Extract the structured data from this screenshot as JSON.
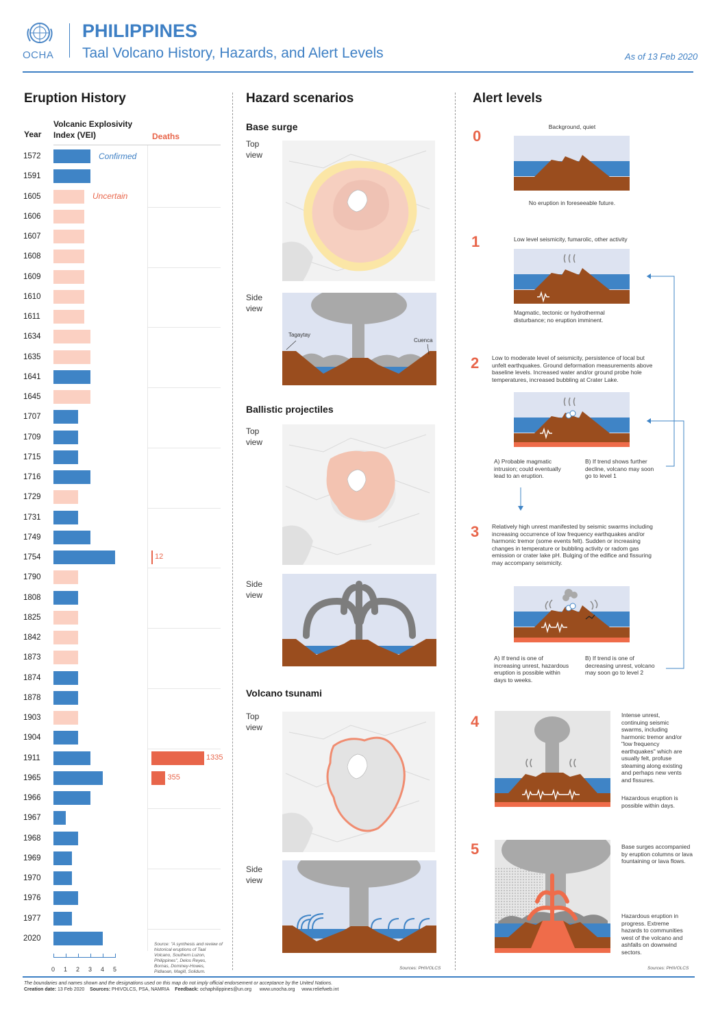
{
  "header": {
    "org": "OCHA",
    "country": "PHILIPPINES",
    "subtitle": "Taal Volcano History, Hazards, and Alert Levels",
    "as_of": "As of 13 Feb 2020"
  },
  "colors": {
    "accent": "#3d7fc4",
    "confirmed": "#3f84c6",
    "uncertain": "#fbd0c2",
    "deaths": "#e8654a",
    "lava": "#ef6c4a",
    "earth": "#9a4d1e",
    "sky": "#dde3f1",
    "water": "#3f84c6",
    "ash": "#a9a9a9"
  },
  "history": {
    "title": "Eruption History",
    "col_year": "Year",
    "col_vei_1": "Volcanic Explosivity",
    "col_vei_2": "Index (VEI)",
    "col_deaths": "Deaths",
    "confirmed_label": "Confirmed",
    "uncertain_label": "Uncertain",
    "axis_ticks": [
      "0",
      "1",
      "2",
      "3",
      "4",
      "5"
    ],
    "source_note": "Source: \"A synthesis and review of historical eruptions of Taal Volcano, Southern Luzon, Philippines\", Delos Reyes, Bornas, Dominey-Howes, Pidlaoan, Magill, Solidum.",
    "rows": [
      {
        "year": "1572",
        "vei": 3,
        "status": "confirmed"
      },
      {
        "year": "1591",
        "vei": 3,
        "status": "confirmed"
      },
      {
        "year": "1605",
        "vei": 2.5,
        "status": "uncertain"
      },
      {
        "year": "1606",
        "vei": 2.5,
        "status": "uncertain"
      },
      {
        "year": "1607",
        "vei": 2.5,
        "status": "uncertain"
      },
      {
        "year": "1608",
        "vei": 2.5,
        "status": "uncertain"
      },
      {
        "year": "1609",
        "vei": 2.5,
        "status": "uncertain"
      },
      {
        "year": "1610",
        "vei": 2.5,
        "status": "uncertain"
      },
      {
        "year": "1611",
        "vei": 2.5,
        "status": "uncertain"
      },
      {
        "year": "1634",
        "vei": 3,
        "status": "uncertain"
      },
      {
        "year": "1635",
        "vei": 3,
        "status": "uncertain"
      },
      {
        "year": "1641",
        "vei": 3,
        "status": "confirmed"
      },
      {
        "year": "1645",
        "vei": 3,
        "status": "uncertain"
      },
      {
        "year": "1707",
        "vei": 2,
        "status": "confirmed"
      },
      {
        "year": "1709",
        "vei": 2,
        "status": "confirmed"
      },
      {
        "year": "1715",
        "vei": 2,
        "status": "confirmed"
      },
      {
        "year": "1716",
        "vei": 3,
        "status": "confirmed"
      },
      {
        "year": "1729",
        "vei": 2,
        "status": "uncertain"
      },
      {
        "year": "1731",
        "vei": 2,
        "status": "confirmed"
      },
      {
        "year": "1749",
        "vei": 3,
        "status": "confirmed"
      },
      {
        "year": "1754",
        "vei": 5,
        "status": "confirmed",
        "deaths": "12",
        "deaths_n": 12
      },
      {
        "year": "1790",
        "vei": 2,
        "status": "uncertain"
      },
      {
        "year": "1808",
        "vei": 2,
        "status": "confirmed"
      },
      {
        "year": "1825",
        "vei": 2,
        "status": "uncertain"
      },
      {
        "year": "1842",
        "vei": 2,
        "status": "uncertain"
      },
      {
        "year": "1873",
        "vei": 2,
        "status": "uncertain"
      },
      {
        "year": "1874",
        "vei": 2,
        "status": "confirmed"
      },
      {
        "year": "1878",
        "vei": 2,
        "status": "confirmed"
      },
      {
        "year": "1903",
        "vei": 2,
        "status": "uncertain"
      },
      {
        "year": "1904",
        "vei": 2,
        "status": "confirmed"
      },
      {
        "year": "1911",
        "vei": 3,
        "status": "confirmed",
        "deaths": "1335",
        "deaths_n": 1335
      },
      {
        "year": "1965",
        "vei": 4,
        "status": "confirmed",
        "deaths": "355",
        "deaths_n": 355
      },
      {
        "year": "1966",
        "vei": 3,
        "status": "confirmed"
      },
      {
        "year": "1967",
        "vei": 1,
        "status": "confirmed"
      },
      {
        "year": "1968",
        "vei": 2,
        "status": "confirmed"
      },
      {
        "year": "1969",
        "vei": 1.5,
        "status": "confirmed"
      },
      {
        "year": "1970",
        "vei": 1.5,
        "status": "confirmed"
      },
      {
        "year": "1976",
        "vei": 2,
        "status": "confirmed"
      },
      {
        "year": "1977",
        "vei": 1.5,
        "status": "confirmed"
      },
      {
        "year": "2020",
        "vei": 4,
        "status": "confirmed"
      }
    ]
  },
  "hazards": {
    "title": "Hazard scenarios",
    "top_view_1": "Top",
    "top_view_2": "view",
    "side_view_1": "Side",
    "side_view_2": "view",
    "base_surge": "Base surge",
    "ballistic": "Ballistic projectiles",
    "tsunami": "Volcano tsunami",
    "tagaytay": "Tagaytay",
    "cuenca": "Cuenca",
    "source": "Sources: PHIVOLCS"
  },
  "alerts": {
    "title": "Alert levels",
    "l0": "0",
    "l0_top": "Background, quiet",
    "l0_bottom": "No eruption in foreseeable future.",
    "l1": "1",
    "l1_top": "Low level seismicity, fumarolic, other activity",
    "l1_bottom": "Magmatic, tectonic or hydrothermal disturbance; no eruption imminent.",
    "l2": "2",
    "l2_top": "Low to moderate level of seismicity, persistence of local but unfelt earthquakes.  Ground deformation measurements above baseline levels.  Increased water and/or ground probe hole temperatures, increased bubbling at Crater Lake.",
    "l2_a": "A) Probable magmatic intrusion; could eventually lead to an eruption.",
    "l2_b": "B) If trend shows further decline, volcano may soon go to level 1",
    "l3": "3",
    "l3_top": "Relatively high unrest manifested by seismic swarms including increasing occurrence of low frequency earthquakes and/or harmonic tremor (some events felt).  Sudden or increasing changes in temperature or bubbling activity or radom gas emission or crater lake pH.  Bulging of the edifice and fissuring may accompany seismicity.",
    "l3_a": "A) If trend is one of increasing unrest, hazardous eruption is possible within days to weeks.",
    "l3_b": "B) If trend is one of decreasing unrest, volcano may soon go to level 2",
    "l4": "4",
    "l4_text": "Intense unrest, continuing seismic swarms, including harmonic tremor and/or \"low frequency earthquakes\" which are usually felt, profuse steaming along existing and perhaps new vents and fissures.",
    "l4_text2": "Hazardous eruption is possible within days.",
    "l5": "5",
    "l5_text": "Base surges accompanied by eruption columns or lava fountaining or lava flows.",
    "l5_text2": "Hazardous eruption in progress.  Extreme hazards to communities west of the volcano and ashfalls on downwind sectors.",
    "source": "Sources: PHIVOLCS"
  },
  "footer": {
    "disclaimer": "The boundaries and names shown and the designations used on this map do not imply official endorsement or acceptance by the United Nations.",
    "creation_label": "Creation date:",
    "creation_date": "13 Feb 2020",
    "sources_label": "Sources:",
    "sources": "PHIVOLCS, PSA, NAMRIA",
    "feedback_label": "Feedback:",
    "feedback": "ochaphilippines@un.org",
    "site1": "www.unocha.org",
    "site2": "www.reliefweb.int"
  }
}
